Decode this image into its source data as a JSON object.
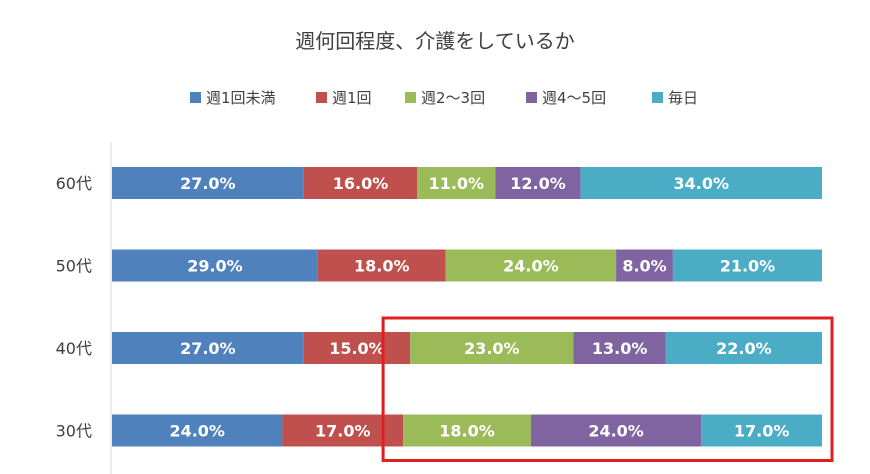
{
  "chart_data": {
    "type": "bar",
    "orientation": "horizontal",
    "stacked": true,
    "title": "週何回程度、介護をしているか",
    "xlabel": "",
    "ylabel": "",
    "xlim": [
      0,
      100
    ],
    "grid": false,
    "legend_position": "top",
    "categories": [
      "60代",
      "50代",
      "40代",
      "30代"
    ],
    "series": [
      {
        "name": "週1回未満",
        "color": "#4f81bd",
        "values": [
          27.0,
          29.0,
          27.0,
          24.0
        ],
        "labels": [
          "27.0%",
          "29.0%",
          "27.0%",
          "24.0%"
        ]
      },
      {
        "name": "週1回",
        "color": "#c0504d",
        "values": [
          16.0,
          18.0,
          15.0,
          17.0
        ],
        "labels": [
          "16.0%",
          "18.0%",
          "15.0%",
          "17.0%"
        ]
      },
      {
        "name": "週2～3回",
        "color": "#9bbb59",
        "values": [
          11.0,
          24.0,
          23.0,
          18.0
        ],
        "labels": [
          "11.0%",
          "24.0%",
          "23.0%",
          "18.0%"
        ]
      },
      {
        "name": "週4～5回",
        "color": "#8064a2",
        "values": [
          12.0,
          8.0,
          13.0,
          24.0
        ],
        "labels": [
          "12.0%",
          "8.0%",
          "13.0%",
          "24.0%"
        ]
      },
      {
        "name": "毎日",
        "color": "#4bacc6",
        "values": [
          34.0,
          21.0,
          22.0,
          17.0
        ],
        "labels": [
          "34.0%",
          "21.0%",
          "22.0%",
          "17.0%"
        ]
      }
    ],
    "highlight": {
      "color": "#e02020",
      "categories": [
        "40代",
        "30代"
      ],
      "series": [
        "週2～3回",
        "週4～5回",
        "毎日"
      ]
    }
  }
}
